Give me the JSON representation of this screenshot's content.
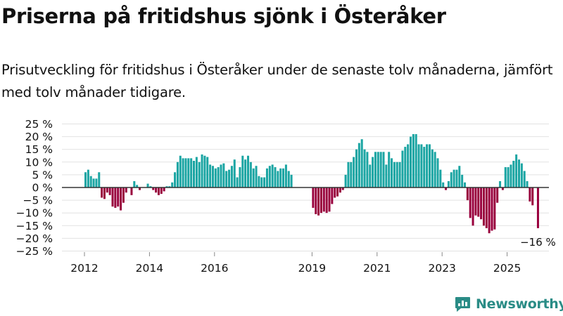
{
  "title": "Priserna på fritidshus sjönk i Österåker",
  "subtitle": "Prisutveckling för fritidshus i Österåker under de senaste tolv månaderna, jämfört med tolv månader tidigare.",
  "brand": {
    "name": "Newsworthy",
    "color": "#2a8c86",
    "icon": "newsworthy-logo-icon"
  },
  "colors": {
    "positive": "#1ba5a3",
    "negative": "#99003d",
    "zero_line": "#333333",
    "grid": "#e2e2e2",
    "text": "#111111"
  },
  "chart_data": {
    "type": "bar",
    "title": "Priserna på fritidshus sjönk i Österåker",
    "ylabel": "",
    "xlabel": "",
    "ylim": [
      -25,
      25
    ],
    "y_ticks": [
      25,
      20,
      15,
      10,
      5,
      0,
      -5,
      -10,
      -15,
      -20,
      -25
    ],
    "y_tick_labels": [
      "25 %",
      "20 %",
      "15 %",
      "10 %",
      "5 %",
      "0 %",
      "−5 %",
      "−10 %",
      "−15 %",
      "−20 %",
      "−25 %"
    ],
    "x_ticks": [
      2012,
      2014,
      2016,
      2019,
      2021,
      2023,
      2025
    ],
    "x_tick_labels": [
      "2012",
      "2014",
      "2016",
      "2019",
      "2021",
      "2023",
      "2025"
    ],
    "grid": true,
    "annotation": {
      "text": "−16 %",
      "value": -16
    },
    "series": [
      {
        "name": "Prisutveckling",
        "start_year": 2012,
        "segment": 1,
        "values": [
          6,
          7,
          4.5,
          3.5,
          3.5,
          6,
          -4,
          -4.5,
          -2,
          -3,
          -7.5,
          -8,
          -7.5,
          -9,
          -6,
          -2,
          0,
          -3,
          2.5,
          1,
          -1,
          0,
          0,
          1.5,
          0.5,
          -1,
          -2,
          -3,
          -2.5,
          -1.5,
          0.5,
          0.5,
          2,
          6,
          10,
          12.5,
          11.5,
          11.5,
          11.5,
          11.5,
          10.5,
          12,
          10,
          13,
          12.5,
          12,
          9,
          8.5,
          7.5,
          8,
          9,
          9.5,
          6.5,
          7,
          8.5,
          11,
          4,
          8,
          12.5,
          11,
          12.5,
          10,
          7.5,
          8.5,
          4.5,
          4,
          4,
          7.5,
          8.5,
          9,
          8,
          6.5,
          7.5,
          7.5,
          9,
          6.5,
          5
        ]
      },
      {
        "name": "Prisutveckling",
        "start_year": 2019,
        "segment": 2,
        "values": [
          -8,
          -10.5,
          -11,
          -10,
          -9.5,
          -10,
          -9.5,
          -6.5,
          -4,
          -3.5,
          -2,
          -1,
          5,
          10,
          10,
          12,
          15,
          17.5,
          19,
          15,
          14,
          9,
          12,
          14,
          14,
          14,
          14,
          9,
          14,
          11.5,
          10,
          10,
          10,
          14.5,
          16,
          17,
          20,
          21,
          21,
          17,
          17,
          16,
          17,
          17,
          15,
          14,
          11.5,
          7,
          2,
          -1,
          2.5,
          6,
          7,
          7,
          8.5,
          5,
          2,
          -5,
          -12,
          -15,
          -11,
          -11.5,
          -12.5,
          -15,
          -16,
          -18,
          -17,
          -16.5,
          -6,
          2.5,
          -1,
          8,
          8,
          9,
          10.5,
          13,
          11,
          9.5,
          6.5,
          2.5,
          -5.5,
          -7,
          0,
          -16
        ]
      }
    ]
  }
}
